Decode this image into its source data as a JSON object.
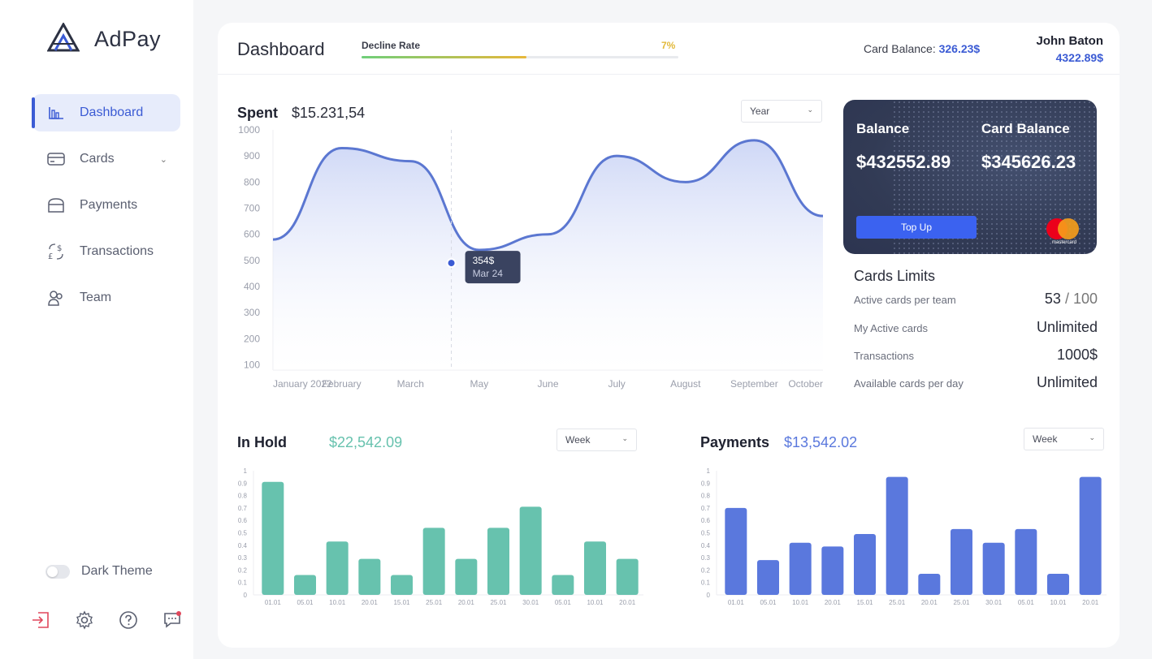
{
  "brand": {
    "name": "AdPay"
  },
  "nav": [
    {
      "label": "Dashboard",
      "icon": "bar-chart-icon",
      "active": true
    },
    {
      "label": "Cards",
      "icon": "card-icon",
      "expandable": true
    },
    {
      "label": "Payments",
      "icon": "wallet-icon"
    },
    {
      "label": "Transactions",
      "icon": "currency-exchange-icon"
    },
    {
      "label": "Team",
      "icon": "team-icon"
    }
  ],
  "theme_toggle": {
    "label": "Dark Theme",
    "enabled": false
  },
  "bottom_icons": [
    "logout-icon",
    "gear-icon",
    "help-icon",
    "chat-icon"
  ],
  "header": {
    "title": "Dashboard",
    "decline_rate_label": "Decline Rate",
    "decline_rate_value": "7%",
    "decline_rate_fill": 0.52,
    "card_balance_label": "Card Balance:",
    "card_balance_value": "326.23$",
    "user_name": "John Baton",
    "user_balance": "4322.89$"
  },
  "spent": {
    "title": "Spent",
    "value": "$15.231,54",
    "period": "Year",
    "tooltip_value": "354$",
    "tooltip_date": "Mar 24"
  },
  "card": {
    "balance_label": "Balance",
    "balance_value": "$432552.89",
    "card_balance_label": "Card Balance",
    "card_balance_value": "$345626.23",
    "top_up_label": "Top Up",
    "network_text": "mastercard"
  },
  "limits": {
    "title": "Cards Limits",
    "rows": [
      {
        "label": "Active cards per team",
        "value": "53",
        "max": "100"
      },
      {
        "label": "My Active cards",
        "value": "Unlimited"
      },
      {
        "label": "Transactions",
        "value": "1000$"
      },
      {
        "label": "Available cards per day",
        "value": "Unlimited"
      }
    ]
  },
  "in_hold": {
    "title": "In Hold",
    "value": "$22,542.09",
    "period": "Week"
  },
  "payments": {
    "title": "Payments",
    "value": "$13,542.02",
    "period": "Week"
  },
  "colors": {
    "accent": "#3b5bd4",
    "teal": "#67c2ae",
    "blue_bar": "#5a78dd",
    "line": "#5b77d1"
  },
  "chart_data": [
    {
      "type": "area",
      "title": "Spent",
      "x": [
        "January 2022",
        "February",
        "March",
        "May",
        "June",
        "July",
        "August",
        "September",
        "October"
      ],
      "y": [
        580,
        930,
        880,
        540,
        600,
        900,
        800,
        960,
        670
      ],
      "highlight": {
        "label": "354$",
        "date": "Mar 24"
      },
      "yticks": [
        1000,
        900,
        800,
        700,
        600,
        500,
        400,
        300,
        200,
        100
      ],
      "ylim": [
        80,
        1000
      ],
      "grid": false
    },
    {
      "type": "bar",
      "title": "In Hold",
      "categories": [
        "01.01",
        "05.01",
        "10.01",
        "20.01",
        "15.01",
        "25.01",
        "20.01",
        "25.01",
        "30.01",
        "05.01",
        "10.01",
        "20.01"
      ],
      "values": [
        0.91,
        0.16,
        0.43,
        0.29,
        0.16,
        0.54,
        0.29,
        0.54,
        0.71,
        0.16,
        0.43,
        0.29
      ],
      "yticks": [
        1.0,
        0.9,
        0.8,
        0.7,
        0.6,
        0.5,
        0.4,
        0.3,
        0.2,
        0.1,
        0
      ],
      "ylim": [
        0,
        1.0
      ]
    },
    {
      "type": "bar",
      "title": "Payments",
      "categories": [
        "01.01",
        "05.01",
        "10.01",
        "20.01",
        "15.01",
        "25.01",
        "20.01",
        "25.01",
        "30.01",
        "05.01",
        "10.01",
        "20.01"
      ],
      "values": [
        0.7,
        0.28,
        0.42,
        0.39,
        0.49,
        0.95,
        0.17,
        0.53,
        0.42,
        0.53,
        0.17,
        0.95
      ],
      "yticks": [
        1.0,
        0.9,
        0.8,
        0.7,
        0.6,
        0.5,
        0.4,
        0.3,
        0.2,
        0.1,
        0
      ],
      "ylim": [
        0,
        1.0
      ]
    }
  ]
}
